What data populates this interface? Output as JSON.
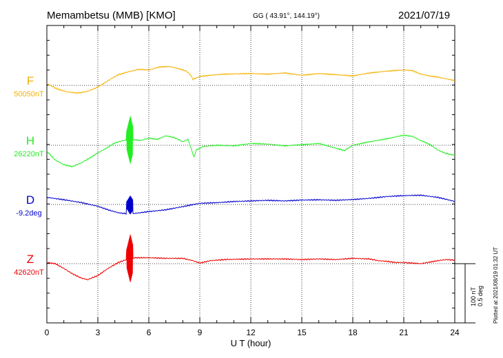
{
  "header": {
    "station": "Memambetsu (MMB)  [KMO]",
    "coords": "GG ( 43.91°, 144.19°)",
    "date": "2021/07/19"
  },
  "scale": {
    "nt": "100 nT",
    "deg": "0.5 deg"
  },
  "plotted": "Plotted at 2021/08/19 01:32 UT",
  "chart_data": {
    "type": "line",
    "title": "Memambetsu (MMB)  [KMO]",
    "xlabel": "U T (hour)",
    "ylabel": "",
    "xlim": [
      0,
      24
    ],
    "x_ticks": [
      "0",
      "3",
      "6",
      "9",
      "12",
      "15",
      "18",
      "21",
      "24"
    ],
    "grid": true,
    "series": [
      {
        "name": "F",
        "baseline_label": "50050nT",
        "color": "#f5b000",
        "base": 50050,
        "unit": "nT",
        "points": [
          [
            0,
            50053
          ],
          [
            0.6,
            50044
          ],
          [
            1.2,
            50039
          ],
          [
            1.8,
            50037
          ],
          [
            2.4,
            50040
          ],
          [
            3.0,
            50047
          ],
          [
            3.6,
            50058
          ],
          [
            4.2,
            50068
          ],
          [
            4.8,
            50073
          ],
          [
            5.4,
            50077
          ],
          [
            6.0,
            50076
          ],
          [
            6.6,
            50081
          ],
          [
            7.2,
            50082
          ],
          [
            7.8,
            50078
          ],
          [
            8.2,
            50074
          ],
          [
            8.45,
            50068
          ],
          [
            8.6,
            50060
          ],
          [
            8.75,
            50062
          ],
          [
            9.0,
            50065
          ],
          [
            9.6,
            50067
          ],
          [
            10.5,
            50069
          ],
          [
            12.0,
            50070
          ],
          [
            13.0,
            50069
          ],
          [
            14.0,
            50071
          ],
          [
            15.0,
            50067
          ],
          [
            16.0,
            50070
          ],
          [
            17.0,
            50068
          ],
          [
            18.0,
            50066
          ],
          [
            19.0,
            50071
          ],
          [
            20.0,
            50074
          ],
          [
            21.0,
            50076
          ],
          [
            21.5,
            50075
          ],
          [
            22.0,
            50069
          ],
          [
            22.5,
            50066
          ],
          [
            23.0,
            50064
          ],
          [
            23.5,
            50061
          ],
          [
            24.0,
            50058
          ]
        ]
      },
      {
        "name": "H",
        "baseline_label": "26220nT",
        "color": "#22ee22",
        "base": 26220,
        "unit": "nT",
        "points": [
          [
            0,
            26210
          ],
          [
            0.5,
            26195
          ],
          [
            1.0,
            26187
          ],
          [
            1.5,
            26184
          ],
          [
            2.0,
            26190
          ],
          [
            2.5,
            26198
          ],
          [
            3.0,
            26207
          ],
          [
            3.5,
            26215
          ],
          [
            4.0,
            26224
          ],
          [
            4.5,
            26228
          ],
          [
            5.0,
            26230
          ],
          [
            5.5,
            26228
          ],
          [
            6.0,
            26232
          ],
          [
            6.5,
            26230
          ],
          [
            7.0,
            26236
          ],
          [
            7.5,
            26233
          ],
          [
            8.0,
            26226
          ],
          [
            8.3,
            26230
          ],
          [
            8.5,
            26214
          ],
          [
            8.65,
            26200
          ],
          [
            8.8,
            26212
          ],
          [
            9.2,
            26218
          ],
          [
            10.0,
            26220
          ],
          [
            11.0,
            26219
          ],
          [
            12.0,
            26223
          ],
          [
            13.0,
            26222
          ],
          [
            14.0,
            26219
          ],
          [
            15.0,
            26221
          ],
          [
            16.0,
            26223
          ],
          [
            17.0,
            26215
          ],
          [
            17.5,
            26211
          ],
          [
            18.0,
            26220
          ],
          [
            19.0,
            26226
          ],
          [
            20.0,
            26231
          ],
          [
            21.0,
            26237
          ],
          [
            21.5,
            26235
          ],
          [
            22.0,
            26228
          ],
          [
            22.5,
            26222
          ],
          [
            23.0,
            26212
          ],
          [
            23.5,
            26206
          ],
          [
            24.0,
            26203
          ]
        ]
      },
      {
        "name": "D",
        "baseline_label": "-9.2deg",
        "color": "#0000cc",
        "base": -9.2,
        "unit": "deg",
        "points": [
          [
            0,
            -9.14
          ],
          [
            1.0,
            -9.16
          ],
          [
            2.0,
            -9.183
          ],
          [
            3.0,
            -9.215
          ],
          [
            3.6,
            -9.245
          ],
          [
            4.2,
            -9.27
          ],
          [
            4.8,
            -9.28
          ],
          [
            5.2,
            -9.275
          ],
          [
            6.0,
            -9.26
          ],
          [
            7.0,
            -9.245
          ],
          [
            8.0,
            -9.218
          ],
          [
            9.0,
            -9.19
          ],
          [
            10.0,
            -9.185
          ],
          [
            11.0,
            -9.175
          ],
          [
            12.0,
            -9.17
          ],
          [
            13.0,
            -9.165
          ],
          [
            14.0,
            -9.17
          ],
          [
            15.0,
            -9.163
          ],
          [
            16.0,
            -9.16
          ],
          [
            17.0,
            -9.165
          ],
          [
            18.0,
            -9.158
          ],
          [
            19.0,
            -9.148
          ],
          [
            20.0,
            -9.133
          ],
          [
            21.0,
            -9.125
          ],
          [
            22.0,
            -9.122
          ],
          [
            23.0,
            -9.14
          ],
          [
            23.6,
            -9.16
          ],
          [
            24.0,
            -9.175
          ]
        ]
      },
      {
        "name": "Z",
        "baseline_label": "42620nT",
        "color": "#ee0000",
        "base": 42620,
        "unit": "nT",
        "points": [
          [
            0,
            42622
          ],
          [
            0.5,
            42620
          ],
          [
            1.0,
            42612
          ],
          [
            1.5,
            42603
          ],
          [
            2.0,
            42596
          ],
          [
            2.4,
            42593
          ],
          [
            3.0,
            42600
          ],
          [
            3.6,
            42612
          ],
          [
            4.2,
            42622
          ],
          [
            4.8,
            42628
          ],
          [
            5.2,
            42630
          ],
          [
            6.0,
            42630
          ],
          [
            7.0,
            42629
          ],
          [
            8.0,
            42629
          ],
          [
            8.6,
            42625
          ],
          [
            9.0,
            42621
          ],
          [
            9.6,
            42625
          ],
          [
            10.5,
            42627
          ],
          [
            12.0,
            42628
          ],
          [
            13.0,
            42628
          ],
          [
            14.0,
            42628
          ],
          [
            15.0,
            42627
          ],
          [
            16.0,
            42628
          ],
          [
            17.0,
            42627
          ],
          [
            18.0,
            42629
          ],
          [
            19.0,
            42628
          ],
          [
            19.5,
            42625
          ],
          [
            20.0,
            42624
          ],
          [
            20.5,
            42622
          ],
          [
            21.0,
            42622
          ],
          [
            21.5,
            42621
          ],
          [
            22.0,
            42620
          ],
          [
            23.0,
            42625
          ],
          [
            23.5,
            42627
          ],
          [
            24.0,
            42626
          ]
        ]
      }
    ],
    "disturbance": {
      "x_range": [
        4.7,
        5.05
      ],
      "peaks": {
        "H": {
          "top": 26270,
          "bottom": 26188
        },
        "D": {
          "top": -9.125,
          "bottom": -9.285
        },
        "Z": {
          "top": 42670,
          "bottom": 42588
        }
      }
    }
  }
}
